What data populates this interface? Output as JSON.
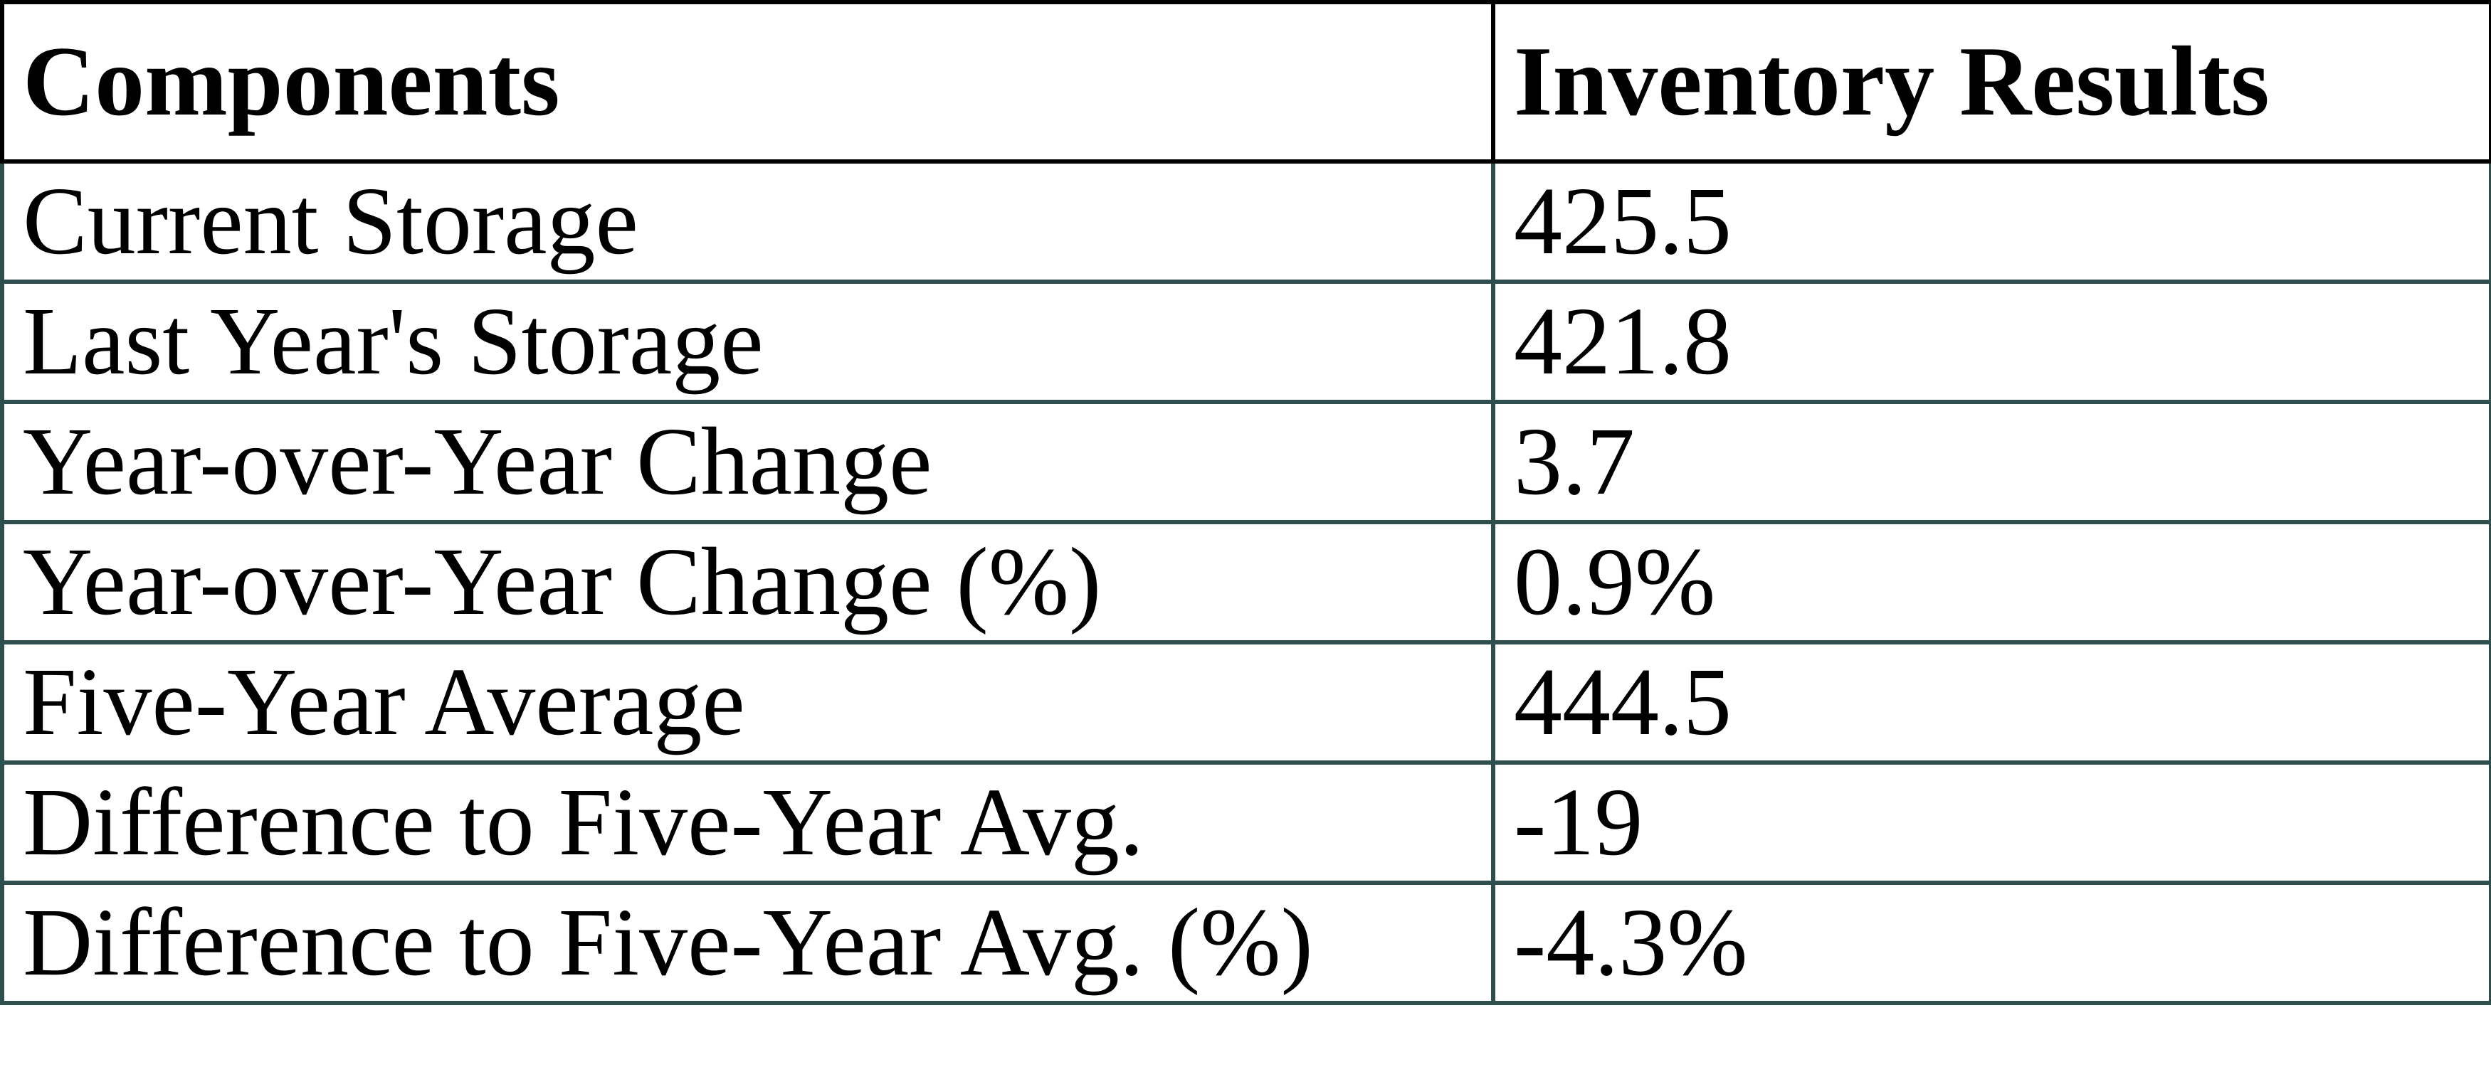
{
  "chart_data": {
    "type": "table",
    "title": "Inventory Results table",
    "columns": [
      "Components",
      "Inventory Results"
    ],
    "rows": [
      [
        "Current Storage",
        "425.5"
      ],
      [
        "Last Year's Storage",
        "421.8"
      ],
      [
        "Year-over-Year Change",
        "3.7"
      ],
      [
        "Year-over-Year Change (%)",
        "0.9%"
      ],
      [
        "Five-Year Average",
        "444.5"
      ],
      [
        "Difference to Five-Year Avg.",
        "-19"
      ],
      [
        "Difference to Five-Year Avg. (%)",
        "-4.3%"
      ]
    ],
    "layout": {
      "header_border_color": "#000000",
      "body_border_color": "#2F4F4F",
      "text_color": "#000000",
      "background_color": "#FFFFFF",
      "grid": "on"
    }
  }
}
